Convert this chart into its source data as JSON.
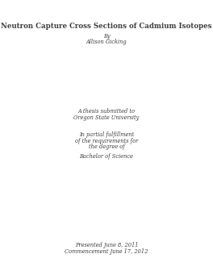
{
  "title": "Neutron Capture Cross Sections of Cadmium Isotopes",
  "by_label": "By",
  "author": "Allison Gicking",
  "thesis_line1": "A thesis submitted to",
  "thesis_line2": "Oregon State University",
  "fulfillment_line1": "In partial fulfillment",
  "fulfillment_line2": "of the requirements for",
  "fulfillment_line3": "the degree of",
  "degree": "Bachelor of Science",
  "presented": "Presented June 8, 2011",
  "commencement": "Commencement June 17, 2012",
  "background_color": "#ffffff",
  "text_color": "#404040",
  "title_fontsize": 6.2,
  "body_fontsize": 4.8
}
